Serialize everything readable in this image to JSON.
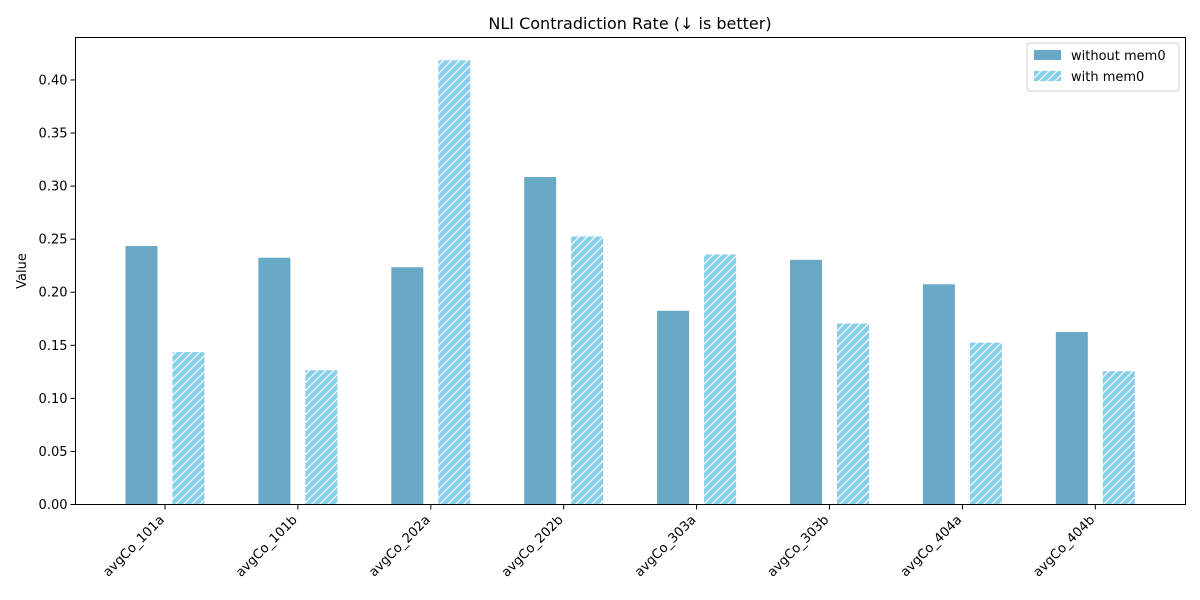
{
  "chart_data": {
    "type": "bar",
    "title": "NLI Contradiction Rate (↓ is better)",
    "xlabel": "",
    "ylabel": "Value",
    "ylim": [
      0,
      0.44
    ],
    "yticks": [
      "0.00",
      "0.05",
      "0.10",
      "0.15",
      "0.20",
      "0.25",
      "0.30",
      "0.35",
      "0.40"
    ],
    "grid": false,
    "legend_position": "top-right",
    "categories": [
      "avgCo_101a",
      "avgCo_101b",
      "avgCo_202a",
      "avgCo_202b",
      "avgCo_303a",
      "avgCo_303b",
      "avgCo_404a",
      "avgCo_404b"
    ],
    "series": [
      {
        "name": "without mem0",
        "color": "#69a9c6",
        "pattern": "solid",
        "values": [
          0.244,
          0.233,
          0.224,
          0.309,
          0.183,
          0.231,
          0.208,
          0.163
        ]
      },
      {
        "name": "with mem0",
        "color": "#87ceeb",
        "pattern": "diagonal-hatch",
        "values": [
          0.144,
          0.127,
          0.419,
          0.253,
          0.236,
          0.171,
          0.153,
          0.126
        ]
      }
    ]
  }
}
